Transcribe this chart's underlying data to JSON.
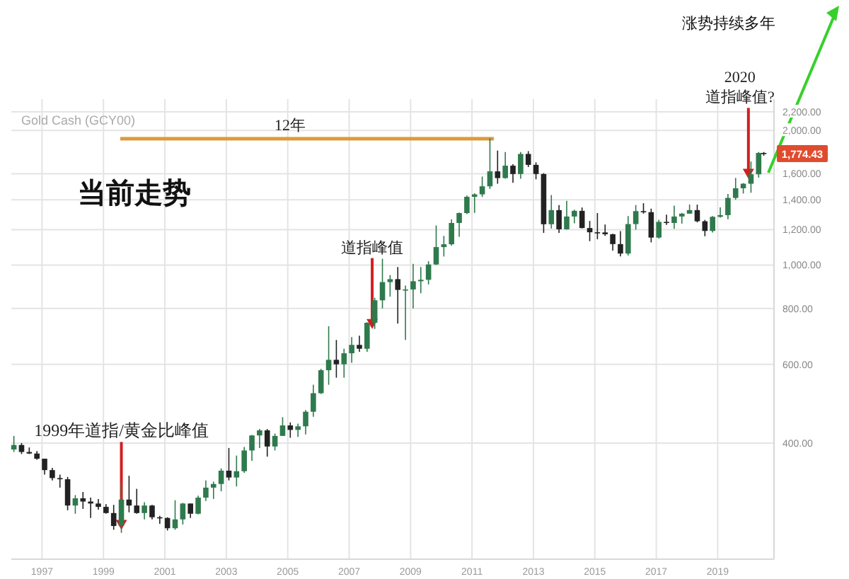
{
  "chart_data": {
    "type": "candlestick",
    "title": "Gold Cash (GCY00)",
    "x": [
      "1996-02",
      "1996-05",
      "1996-08",
      "1996-11",
      "1997-02",
      "1997-05",
      "1997-08",
      "1997-11",
      "1998-02",
      "1998-05",
      "1998-08",
      "1998-11",
      "1999-02",
      "1999-05",
      "1999-08",
      "1999-11",
      "2000-02",
      "2000-05",
      "2000-08",
      "2000-11",
      "2001-02",
      "2001-05",
      "2001-08",
      "2001-11",
      "2002-02",
      "2002-05",
      "2002-08",
      "2002-11",
      "2003-02",
      "2003-05",
      "2003-08",
      "2003-11",
      "2004-02",
      "2004-05",
      "2004-08",
      "2004-11",
      "2005-02",
      "2005-05",
      "2005-08",
      "2005-11",
      "2006-02",
      "2006-05",
      "2006-08",
      "2006-11",
      "2007-02",
      "2007-05",
      "2007-08",
      "2007-11",
      "2008-02",
      "2008-05",
      "2008-08",
      "2008-11",
      "2009-02",
      "2009-05",
      "2009-08",
      "2009-11",
      "2010-02",
      "2010-05",
      "2010-08",
      "2010-11",
      "2011-02",
      "2011-05",
      "2011-08",
      "2011-11",
      "2012-02",
      "2012-05",
      "2012-08",
      "2012-11",
      "2013-02",
      "2013-05",
      "2013-08",
      "2013-11",
      "2014-02",
      "2014-05",
      "2014-08",
      "2014-11",
      "2015-02",
      "2015-05",
      "2015-08",
      "2015-11",
      "2016-02",
      "2016-05",
      "2016-08",
      "2016-11",
      "2017-02",
      "2017-05",
      "2017-08",
      "2017-11",
      "2018-02",
      "2018-05",
      "2018-08",
      "2018-11",
      "2019-02",
      "2019-05",
      "2019-08",
      "2019-11",
      "2020-02",
      "2020-05",
      "2020-07"
    ],
    "ohlc": [
      [
        387,
        415,
        382,
        396
      ],
      [
        396,
        400,
        378,
        382
      ],
      [
        382,
        391,
        378,
        379
      ],
      [
        379,
        384,
        367,
        369
      ],
      [
        369,
        369,
        340,
        348
      ],
      [
        348,
        352,
        330,
        334
      ],
      [
        334,
        340,
        318,
        332
      ],
      [
        332,
        336,
        283,
        290
      ],
      [
        290,
        306,
        278,
        301
      ],
      [
        301,
        311,
        285,
        296
      ],
      [
        296,
        302,
        272,
        293
      ],
      [
        293,
        300,
        284,
        288
      ],
      [
        288,
        292,
        278,
        279
      ],
      [
        279,
        291,
        256,
        261
      ],
      [
        261,
        326,
        252,
        299
      ],
      [
        299,
        338,
        280,
        290
      ],
      [
        290,
        316,
        278,
        279
      ],
      [
        279,
        295,
        270,
        290
      ],
      [
        290,
        291,
        270,
        273
      ],
      [
        273,
        275,
        264,
        272
      ],
      [
        272,
        273,
        255,
        258
      ],
      [
        258,
        298,
        256,
        270
      ],
      [
        270,
        294,
        263,
        293
      ],
      [
        293,
        293,
        272,
        278
      ],
      [
        278,
        305,
        277,
        302
      ],
      [
        302,
        330,
        297,
        318
      ],
      [
        318,
        328,
        300,
        324
      ],
      [
        324,
        351,
        312,
        347
      ],
      [
        347,
        390,
        330,
        335
      ],
      [
        335,
        375,
        320,
        346
      ],
      [
        346,
        392,
        343,
        385
      ],
      [
        385,
        417,
        365,
        416
      ],
      [
        416,
        430,
        390,
        427
      ],
      [
        427,
        430,
        373,
        393
      ],
      [
        393,
        420,
        385,
        415
      ],
      [
        415,
        457,
        415,
        438
      ],
      [
        438,
        445,
        411,
        428
      ],
      [
        428,
        442,
        413,
        436
      ],
      [
        436,
        474,
        418,
        470
      ],
      [
        470,
        540,
        458,
        517
      ],
      [
        517,
        586,
        515,
        582
      ],
      [
        582,
        730,
        540,
        614
      ],
      [
        614,
        680,
        560,
        600
      ],
      [
        600,
        650,
        560,
        635
      ],
      [
        635,
        690,
        605,
        663
      ],
      [
        663,
        695,
        640,
        650
      ],
      [
        650,
        745,
        640,
        743
      ],
      [
        743,
        845,
        720,
        834
      ],
      [
        834,
        1033,
        800,
        916
      ],
      [
        916,
        950,
        850,
        930
      ],
      [
        930,
        990,
        740,
        880
      ],
      [
        880,
        900,
        680,
        882
      ],
      [
        882,
        1006,
        800,
        920
      ],
      [
        920,
        990,
        865,
        927
      ],
      [
        927,
        1020,
        905,
        1003
      ],
      [
        1003,
        1226,
        1000,
        1097
      ],
      [
        1097,
        1162,
        1045,
        1113
      ],
      [
        1113,
        1265,
        1105,
        1242
      ],
      [
        1242,
        1310,
        1157,
        1307
      ],
      [
        1307,
        1430,
        1300,
        1421
      ],
      [
        1421,
        1447,
        1308,
        1439
      ],
      [
        1439,
        1577,
        1420,
        1500
      ],
      [
        1500,
        1920,
        1480,
        1620
      ],
      [
        1620,
        1803,
        1520,
        1565
      ],
      [
        1565,
        1790,
        1560,
        1668
      ],
      [
        1668,
        1680,
        1527,
        1598
      ],
      [
        1598,
        1790,
        1560,
        1772
      ],
      [
        1772,
        1798,
        1656,
        1675
      ],
      [
        1675,
        1697,
        1555,
        1598
      ],
      [
        1598,
        1605,
        1180,
        1234
      ],
      [
        1234,
        1434,
        1207,
        1327
      ],
      [
        1327,
        1362,
        1180,
        1202
      ],
      [
        1202,
        1392,
        1200,
        1284
      ],
      [
        1284,
        1330,
        1240,
        1322
      ],
      [
        1322,
        1345,
        1208,
        1210
      ],
      [
        1210,
        1255,
        1131,
        1184
      ],
      [
        1184,
        1307,
        1142,
        1183
      ],
      [
        1183,
        1232,
        1162,
        1172
      ],
      [
        1172,
        1175,
        1077,
        1114
      ],
      [
        1114,
        1191,
        1046,
        1061
      ],
      [
        1061,
        1287,
        1050,
        1235
      ],
      [
        1235,
        1362,
        1200,
        1320
      ],
      [
        1320,
        1375,
        1303,
        1313
      ],
      [
        1313,
        1337,
        1124,
        1152
      ],
      [
        1152,
        1263,
        1146,
        1249
      ],
      [
        1249,
        1296,
        1230,
        1242
      ],
      [
        1242,
        1358,
        1205,
        1284
      ],
      [
        1284,
        1308,
        1238,
        1303
      ],
      [
        1303,
        1366,
        1302,
        1327
      ],
      [
        1327,
        1365,
        1246,
        1253
      ],
      [
        1253,
        1262,
        1160,
        1192
      ],
      [
        1192,
        1287,
        1182,
        1282
      ],
      [
        1282,
        1346,
        1276,
        1293
      ],
      [
        1293,
        1442,
        1266,
        1413
      ],
      [
        1413,
        1566,
        1400,
        1485
      ],
      [
        1485,
        1525,
        1445,
        1520
      ],
      [
        1520,
        1704,
        1451,
        1596
      ],
      [
        1596,
        1790,
        1568,
        1781
      ],
      [
        1781,
        1790,
        1756,
        1774.43
      ]
    ],
    "xlim": [
      "1996-01",
      "2020-11"
    ],
    "xticks": [
      {
        "value": "1997",
        "label": "1997"
      },
      {
        "value": "1999",
        "label": "1999"
      },
      {
        "value": "2001",
        "label": "2001"
      },
      {
        "value": "2003",
        "label": "2003"
      },
      {
        "value": "2005",
        "label": "2005"
      },
      {
        "value": "2007",
        "label": "2007"
      },
      {
        "value": "2009",
        "label": "2009"
      },
      {
        "value": "2011",
        "label": "2011"
      },
      {
        "value": "2013",
        "label": "2013"
      },
      {
        "value": "2015",
        "label": "2015"
      },
      {
        "value": "2017",
        "label": "2017"
      },
      {
        "value": "2019",
        "label": "2019"
      }
    ],
    "ylim": [
      220,
      2350
    ],
    "log": true,
    "yticks": [
      {
        "value": 400,
        "label": "400.00"
      },
      {
        "value": 600,
        "label": "600.00"
      },
      {
        "value": 800,
        "label": "800.00"
      },
      {
        "value": 1000,
        "label": "1,000.00"
      },
      {
        "value": 1200,
        "label": "1,200.00"
      },
      {
        "value": 1400,
        "label": "1,400.00"
      },
      {
        "value": 1600,
        "label": "1,600.00"
      },
      {
        "value": 2000,
        "label": "2,000.00"
      },
      {
        "value": 2200,
        "label": "2,200.00"
      }
    ],
    "grid": true,
    "annotations": [
      "当前走势",
      "12年",
      {
        "text": "1999年道指/黄金比峰值",
        "x": "1999-08",
        "y": 256
      },
      {
        "text": "道指峰值",
        "x": "2007-10",
        "y": 720
      },
      {
        "text": "2020\n道指峰值?",
        "x": "2020-01",
        "y": 1560
      },
      "涨势持续多年",
      {
        "text": "1,774.43",
        "x": "2020-07",
        "y": 1774.43
      }
    ]
  }
}
